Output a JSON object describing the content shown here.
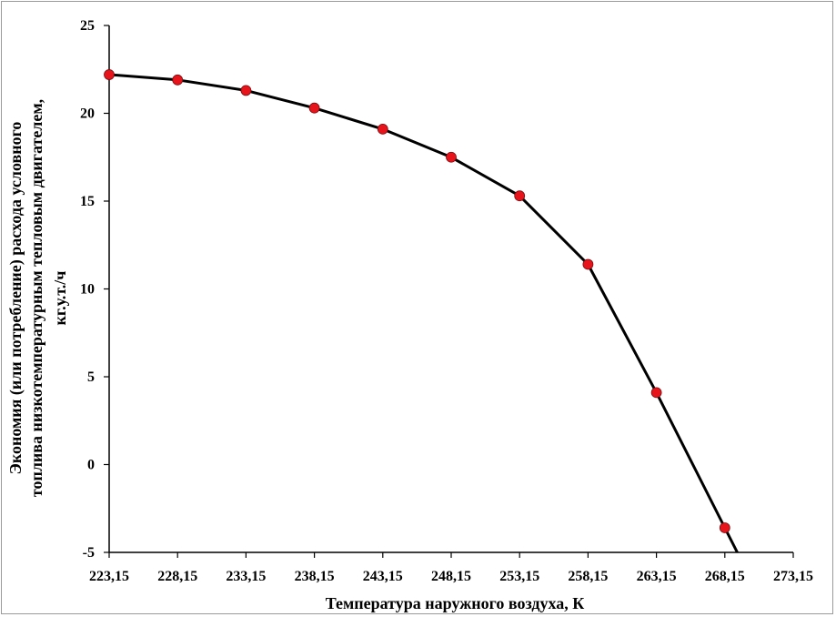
{
  "chart_data": {
    "type": "line",
    "title": "",
    "xlabel": "Температура наружного воздуха, К",
    "ylabel_lines": [
      "Экономия (или потребление) расхода условного",
      "топлива  низкотемпературным тепловым двигателем,",
      "кг.у.т./ч"
    ],
    "x_tick_labels": [
      "223,15",
      "228,15",
      "233,15",
      "238,15",
      "243,15",
      "248,15",
      "253,15",
      "258,15",
      "263,15",
      "268,15",
      "273,15"
    ],
    "y_tick_labels": [
      "-5",
      "0",
      "5",
      "10",
      "15",
      "20",
      "25"
    ],
    "xlim": [
      223.15,
      273.15
    ],
    "ylim": [
      -5,
      25
    ],
    "grid": false,
    "series": [
      {
        "x": [
          223.15,
          228.15,
          233.15,
          238.15,
          243.15,
          248.15,
          253.15,
          258.15,
          263.15,
          268.15
        ],
        "values": [
          22.2,
          21.9,
          21.3,
          20.3,
          19.1,
          17.5,
          15.3,
          11.4,
          4.1,
          -3.6
        ],
        "line_color": "#000000",
        "marker_color": "#e8141b"
      }
    ]
  }
}
